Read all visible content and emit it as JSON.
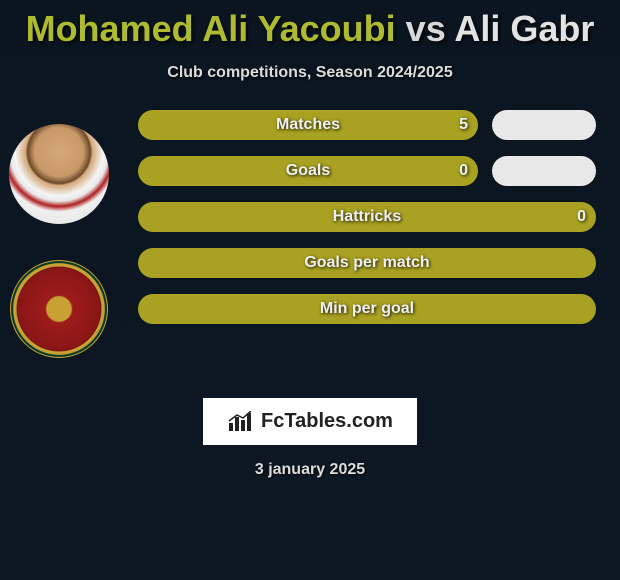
{
  "title": {
    "player1": "Mohamed Ali Yacoubi",
    "vs": "vs",
    "player2": "Ali Gabr"
  },
  "subtitle": "Club competitions, Season 2024/2025",
  "colors": {
    "bar_left": "#a8a121",
    "bar_right": "#e8e8e8",
    "background_top": "#0a1520",
    "background_bottom": "#0e1824",
    "text": "#dcdcdc"
  },
  "stats": [
    {
      "label": "Matches",
      "left_value": "5",
      "left_pct": 100,
      "has_right": true
    },
    {
      "label": "Goals",
      "left_value": "0",
      "left_pct": 100,
      "has_right": true
    },
    {
      "label": "Hattricks",
      "left_value": "0",
      "left_pct": 100,
      "has_right": false
    },
    {
      "label": "Goals per match",
      "left_value": "",
      "left_pct": 100,
      "has_right": false
    },
    {
      "label": "Min per goal",
      "left_value": "",
      "left_pct": 100,
      "has_right": false
    }
  ],
  "brand": "FcTables.com",
  "date": "3 january 2025"
}
